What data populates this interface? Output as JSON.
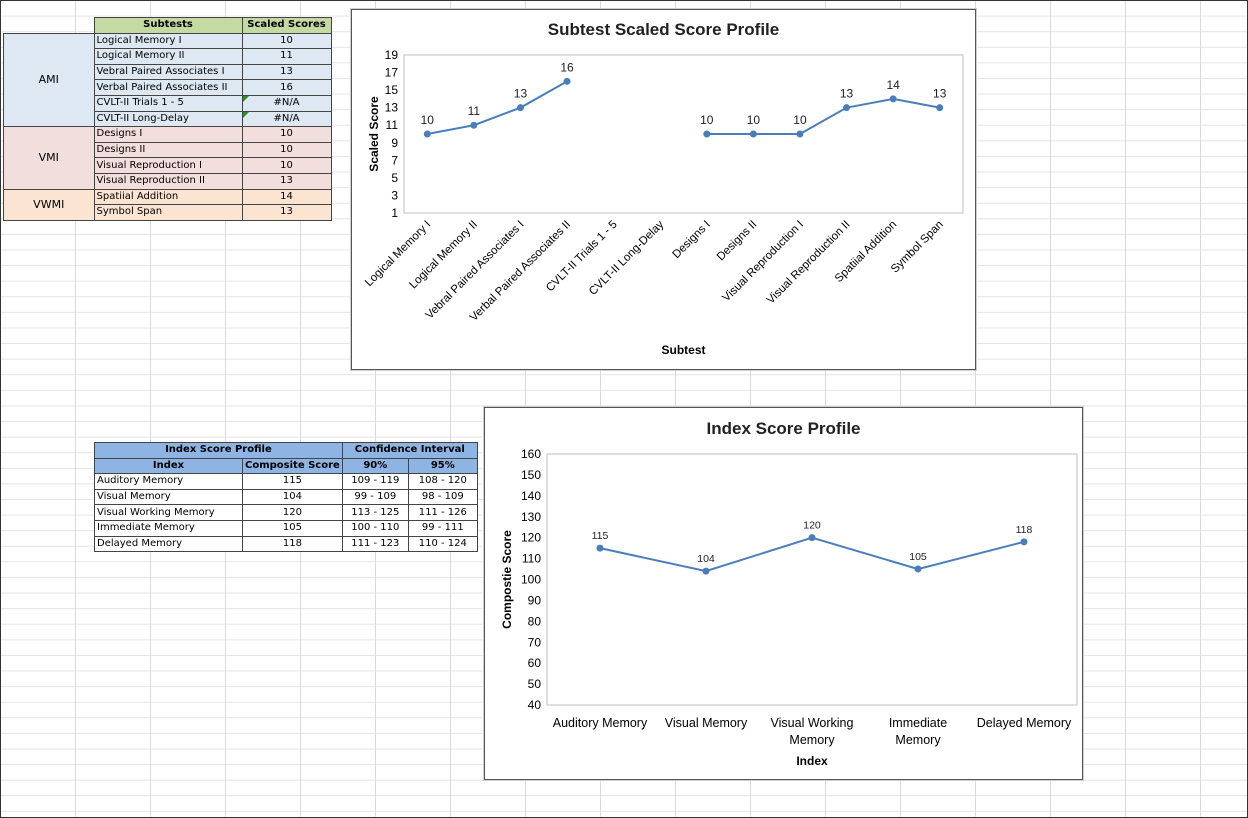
{
  "subtests_table": {
    "headers": [
      "Subtests",
      "Scaled Scores"
    ],
    "groups": [
      {
        "name": "AMI",
        "rows": [
          {
            "subtest": "Logical Memory I",
            "score": "10"
          },
          {
            "subtest": "Logical Memory II",
            "score": "11"
          },
          {
            "subtest": "Vebral Paired Associates I",
            "score": "13"
          },
          {
            "subtest": "Verbal Paired Associates II",
            "score": "16"
          },
          {
            "subtest": "CVLT-II Trials 1 - 5",
            "score": "#N/A"
          },
          {
            "subtest": "CVLT-II Long-Delay",
            "score": "#N/A"
          }
        ]
      },
      {
        "name": "VMI",
        "rows": [
          {
            "subtest": "Designs I",
            "score": "10"
          },
          {
            "subtest": "Designs II",
            "score": "10"
          },
          {
            "subtest": "Visual Reproduction I",
            "score": "10"
          },
          {
            "subtest": "Visual Reproduction II",
            "score": "13"
          }
        ]
      },
      {
        "name": "VWMI",
        "rows": [
          {
            "subtest": "Spatiial Addition",
            "score": "14"
          },
          {
            "subtest": "Symbol Span",
            "score": "13"
          }
        ]
      }
    ]
  },
  "index_table": {
    "title": "Index Score Profile",
    "ci_title": "Confidence Interval",
    "headers": [
      "Index",
      "Composite Score",
      "90%",
      "95%"
    ],
    "rows": [
      {
        "index": "Auditory Memory",
        "score": "115",
        "ci90": "109 - 119",
        "ci95": "108 - 120"
      },
      {
        "index": "Visual Memory",
        "score": "104",
        "ci90": "99 - 109",
        "ci95": "98 - 109"
      },
      {
        "index": "Visual Working Memory",
        "score": "120",
        "ci90": "113 - 125",
        "ci95": "111 - 126"
      },
      {
        "index": "Immediate Memory",
        "score": "105",
        "ci90": "100 - 110",
        "ci95": "99 - 111"
      },
      {
        "index": "Delayed Memory",
        "score": "118",
        "ci90": "111 - 123",
        "ci95": "110 - 124"
      }
    ]
  },
  "chart_data": [
    {
      "type": "line",
      "title": "Subtest Scaled Score Profile",
      "xlabel": "Subtest",
      "ylabel": "Scaled Score",
      "ylim": [
        1,
        19
      ],
      "yticks": [
        1,
        3,
        5,
        7,
        9,
        11,
        13,
        15,
        17,
        19
      ],
      "categories": [
        "Logical Memory I",
        "Logical Memory II",
        "Vebral Paired Associates I",
        "Verbal Paired Associates II",
        "CVLT-II Trials 1 - 5",
        "CVLT-II Long-Delay",
        "Designs I",
        "Designs II",
        "Visual Reproduction I",
        "Visual Reproduction II",
        "Spatiial Addition",
        "Symbol Span"
      ],
      "values": [
        10,
        11,
        13,
        16,
        null,
        null,
        10,
        10,
        10,
        13,
        14,
        13
      ],
      "line_color": "#4a7ebb",
      "grid": false
    },
    {
      "type": "line",
      "title": "Index Score Profile",
      "xlabel": "Index",
      "ylabel": "Compostie Score",
      "ylim": [
        40,
        160
      ],
      "yticks": [
        40,
        50,
        60,
        70,
        80,
        90,
        100,
        110,
        120,
        130,
        140,
        150,
        160
      ],
      "categories": [
        "Auditory Memory",
        "Visual Memory",
        "Visual Working Memory",
        "Immediate Memory",
        "Delayed Memory"
      ],
      "values": [
        115,
        104,
        120,
        105,
        118
      ],
      "line_color": "#4a7ebb",
      "grid": false
    }
  ]
}
